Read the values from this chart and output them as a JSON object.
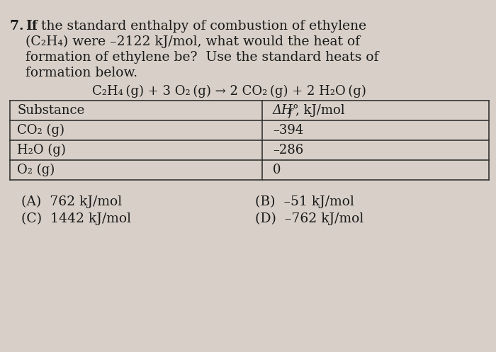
{
  "background_color": "#d8d0c8",
  "question_number": "7.",
  "question_text_bold": "If",
  "question_text": " the standard enthalpy of combustion of ethylene\n(C₂H₄) were –2122 kJ/mol, what would the heat of\nformation of ethylene be?  Use the standard heats of\nformation below.",
  "equation": "C₂H₄ (g) + 3 O₂ (g) → 2 CO₂ (g) + 2 H₂O (g)",
  "table_header_col1": "Substance",
  "table_header_col2": "ΔH°f , kJ/mol",
  "table_rows": [
    [
      "CO₂ (g)",
      "–394"
    ],
    [
      "H₂O (g)",
      "–286"
    ],
    [
      "O₂ (g)",
      "0"
    ]
  ],
  "answers": [
    [
      "(A)  762 kJ/mol",
      "(B)  –51 kJ/mol"
    ],
    [
      "(C)  1442 kJ/mol",
      "(D)  –762 kJ/mol"
    ]
  ],
  "text_color": "#1a1a1a",
  "table_border_color": "#333333",
  "font_size_question": 13.5,
  "font_size_equation": 13,
  "font_size_table": 13,
  "font_size_answers": 13.5
}
